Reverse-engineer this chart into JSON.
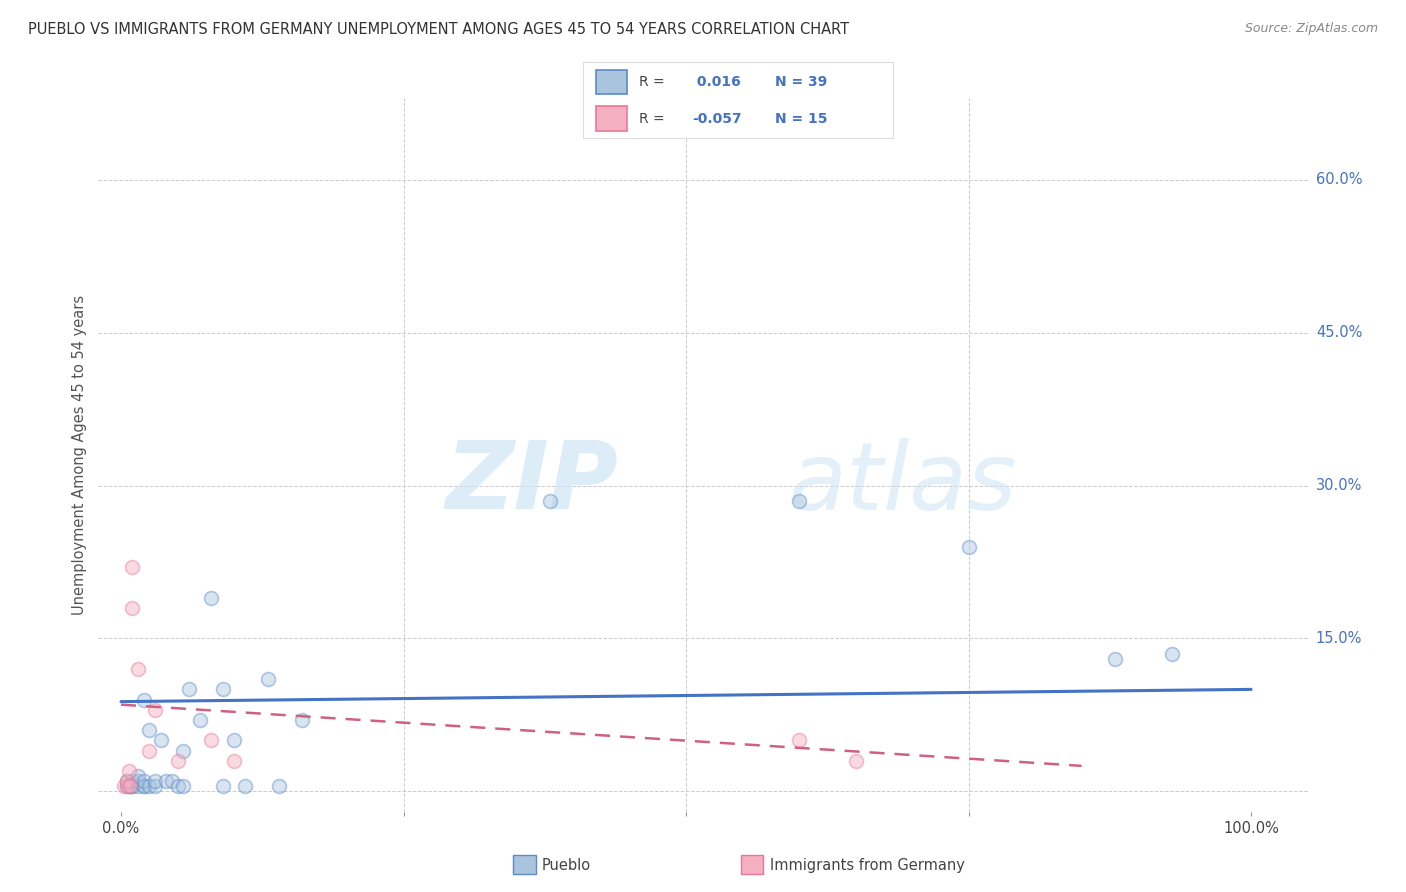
{
  "title": "PUEBLO VS IMMIGRANTS FROM GERMANY UNEMPLOYMENT AMONG AGES 45 TO 54 YEARS CORRELATION CHART",
  "source": "Source: ZipAtlas.com",
  "ylabel": "Unemployment Among Ages 45 to 54 years",
  "xlim": [
    -0.02,
    1.05
  ],
  "ylim": [
    -0.02,
    0.68
  ],
  "xtick_positions": [
    0.0,
    0.25,
    0.5,
    0.75,
    1.0
  ],
  "xticklabels": [
    "0.0%",
    "",
    "",
    "",
    "100.0%"
  ],
  "ytick_positions": [
    0.0,
    0.15,
    0.3,
    0.45,
    0.6
  ],
  "yticklabels": [
    "",
    "15.0%",
    "30.0%",
    "45.0%",
    "60.0%"
  ],
  "pueblo_color": "#aac4de",
  "germany_color": "#f4afc0",
  "pueblo_edge_color": "#5b8cc8",
  "germany_edge_color": "#e87898",
  "pueblo_line_color": "#4472c4",
  "germany_line_color": "#d06080",
  "legend_r_pueblo": "0.016",
  "legend_n_pueblo": "39",
  "legend_r_germany": "-0.057",
  "legend_n_germany": "15",
  "pueblo_scatter_x": [
    0.005,
    0.005,
    0.007,
    0.008,
    0.01,
    0.01,
    0.01,
    0.015,
    0.015,
    0.015,
    0.02,
    0.02,
    0.02,
    0.02,
    0.025,
    0.025,
    0.03,
    0.03,
    0.035,
    0.04,
    0.045,
    0.05,
    0.055,
    0.055,
    0.06,
    0.07,
    0.08,
    0.09,
    0.09,
    0.1,
    0.11,
    0.13,
    0.14,
    0.16,
    0.38,
    0.6,
    0.75,
    0.88,
    0.93
  ],
  "pueblo_scatter_y": [
    0.005,
    0.01,
    0.005,
    0.005,
    0.005,
    0.005,
    0.01,
    0.005,
    0.01,
    0.015,
    0.005,
    0.005,
    0.01,
    0.09,
    0.005,
    0.06,
    0.005,
    0.01,
    0.05,
    0.01,
    0.01,
    0.005,
    0.005,
    0.04,
    0.1,
    0.07,
    0.19,
    0.005,
    0.1,
    0.05,
    0.005,
    0.11,
    0.005,
    0.07,
    0.285,
    0.285,
    0.24,
    0.13,
    0.135
  ],
  "germany_scatter_x": [
    0.003,
    0.005,
    0.005,
    0.007,
    0.008,
    0.01,
    0.01,
    0.015,
    0.025,
    0.03,
    0.05,
    0.08,
    0.1,
    0.6,
    0.65
  ],
  "germany_scatter_y": [
    0.005,
    0.005,
    0.01,
    0.02,
    0.005,
    0.18,
    0.22,
    0.12,
    0.04,
    0.08,
    0.03,
    0.05,
    0.03,
    0.05,
    0.03
  ],
  "pueblo_trendline_x": [
    0.0,
    1.0
  ],
  "pueblo_trendline_y": [
    0.088,
    0.1
  ],
  "germany_trendline_x": [
    0.0,
    0.85
  ],
  "germany_trendline_y": [
    0.085,
    0.025
  ],
  "watermark_zip": "ZIP",
  "watermark_atlas": "atlas",
  "background_color": "#ffffff",
  "grid_color": "#cccccc",
  "marker_size": 100,
  "marker_alpha": 0.45,
  "marker_linewidth": 1.2
}
